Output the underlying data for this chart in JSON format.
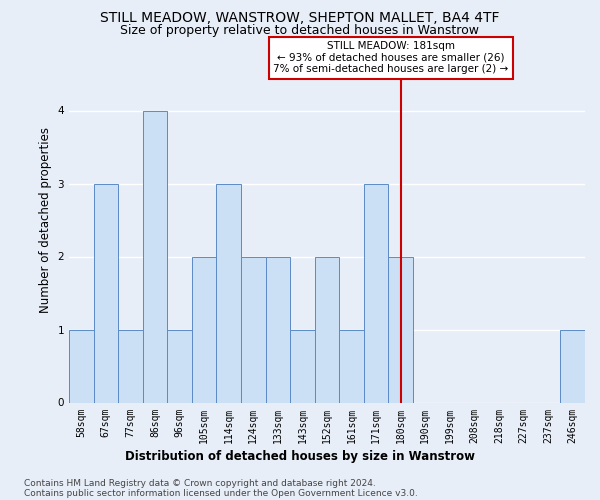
{
  "title": "STILL MEADOW, WANSTROW, SHEPTON MALLET, BA4 4TF",
  "subtitle": "Size of property relative to detached houses in Wanstrow",
  "xlabel": "Distribution of detached houses by size in Wanstrow",
  "ylabel": "Number of detached properties",
  "categories": [
    "58sqm",
    "67sqm",
    "77sqm",
    "86sqm",
    "96sqm",
    "105sqm",
    "114sqm",
    "124sqm",
    "133sqm",
    "143sqm",
    "152sqm",
    "161sqm",
    "171sqm",
    "180sqm",
    "190sqm",
    "199sqm",
    "208sqm",
    "218sqm",
    "227sqm",
    "237sqm",
    "246sqm"
  ],
  "values": [
    1,
    3,
    1,
    4,
    1,
    2,
    3,
    2,
    2,
    1,
    2,
    1,
    3,
    2,
    0,
    0,
    0,
    0,
    0,
    0,
    1
  ],
  "bar_color": "#cce0f5",
  "bar_edge_color": "#5b8ac5",
  "reference_line_x": 13.0,
  "annotation_line1": "STILL MEADOW: 181sqm",
  "annotation_line2": "← 93% of detached houses are smaller (26)",
  "annotation_line3": "7% of semi-detached houses are larger (2) →",
  "annotation_box_color": "#ffffff",
  "annotation_box_edge_color": "#cc0000",
  "vline_color": "#cc0000",
  "ylim": [
    0,
    5
  ],
  "yticks": [
    0,
    1,
    2,
    3,
    4
  ],
  "footer_line1": "Contains HM Land Registry data © Crown copyright and database right 2024.",
  "footer_line2": "Contains public sector information licensed under the Open Government Licence v3.0.",
  "bg_color": "#e8eef8",
  "grid_color": "#ffffff",
  "title_fontsize": 10,
  "subtitle_fontsize": 9,
  "axis_label_fontsize": 8.5,
  "tick_fontsize": 7,
  "footer_fontsize": 6.5
}
